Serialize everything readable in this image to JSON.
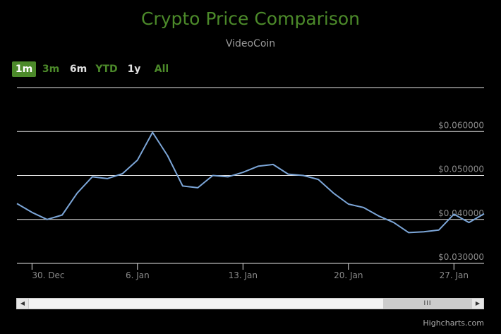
{
  "chart_data": {
    "type": "line",
    "title": "Crypto Price Comparison",
    "subtitle": "VideoCoin",
    "x": [
      "2021-12-29",
      "2021-12-30",
      "2021-12-31",
      "2022-01-01",
      "2022-01-02",
      "2022-01-03",
      "2022-01-04",
      "2022-01-05",
      "2022-01-06",
      "2022-01-07",
      "2022-01-08",
      "2022-01-09",
      "2022-01-10",
      "2022-01-11",
      "2022-01-12",
      "2022-01-13",
      "2022-01-14",
      "2022-01-15",
      "2022-01-16",
      "2022-01-17",
      "2022-01-18",
      "2022-01-19",
      "2022-01-20",
      "2022-01-21",
      "2022-01-22",
      "2022-01-23",
      "2022-01-24",
      "2022-01-25",
      "2022-01-26",
      "2022-01-27",
      "2022-01-28",
      "2022-01-29"
    ],
    "series": [
      {
        "values": [
          0.0436,
          0.0416,
          0.04,
          0.041,
          0.046,
          0.0497,
          0.0493,
          0.0504,
          0.0535,
          0.0598,
          0.0545,
          0.0476,
          0.0472,
          0.05,
          0.0497,
          0.0507,
          0.0521,
          0.0525,
          0.0503,
          0.05,
          0.0491,
          0.046,
          0.0435,
          0.0427,
          0.0408,
          0.0393,
          0.037,
          0.0372,
          0.0376,
          0.0412,
          0.0393,
          0.0413
        ]
      }
    ],
    "ylim": [
      0.03,
      0.07
    ],
    "y_tick_labels": [
      "$0.030000",
      "$0.040000",
      "$0.050000",
      "$0.060000"
    ],
    "x_tick_labels": [
      "30. Dec",
      "6. Jan",
      "13. Jan",
      "20. Jan",
      "27. Jan"
    ],
    "x_tick_dates": [
      "2021-12-30",
      "2022-01-06",
      "2022-01-13",
      "2022-01-20",
      "2022-01-27"
    ],
    "grid": true,
    "legend": "none",
    "colors": {
      "line": "#7ca6d8",
      "grid": "#e6e6e6",
      "title": "#4c8a2a",
      "axis_label": "#8a8a8a"
    }
  },
  "range_selector": {
    "buttons": [
      {
        "label": "1m",
        "active": true
      },
      {
        "label": "3m",
        "active": false
      },
      {
        "label": "6m",
        "active": false
      },
      {
        "label": "YTD",
        "active": false
      },
      {
        "label": "1y",
        "active": false
      },
      {
        "label": "All",
        "active": false
      }
    ],
    "colors": [
      "#ffffff",
      "#4c8a2a",
      "#e0e0e0",
      "#4c8a2a",
      "#e0e0e0",
      "#4c8a2a"
    ]
  },
  "navigator": {
    "thumb_label": "III"
  },
  "credits": "Highcharts.com"
}
